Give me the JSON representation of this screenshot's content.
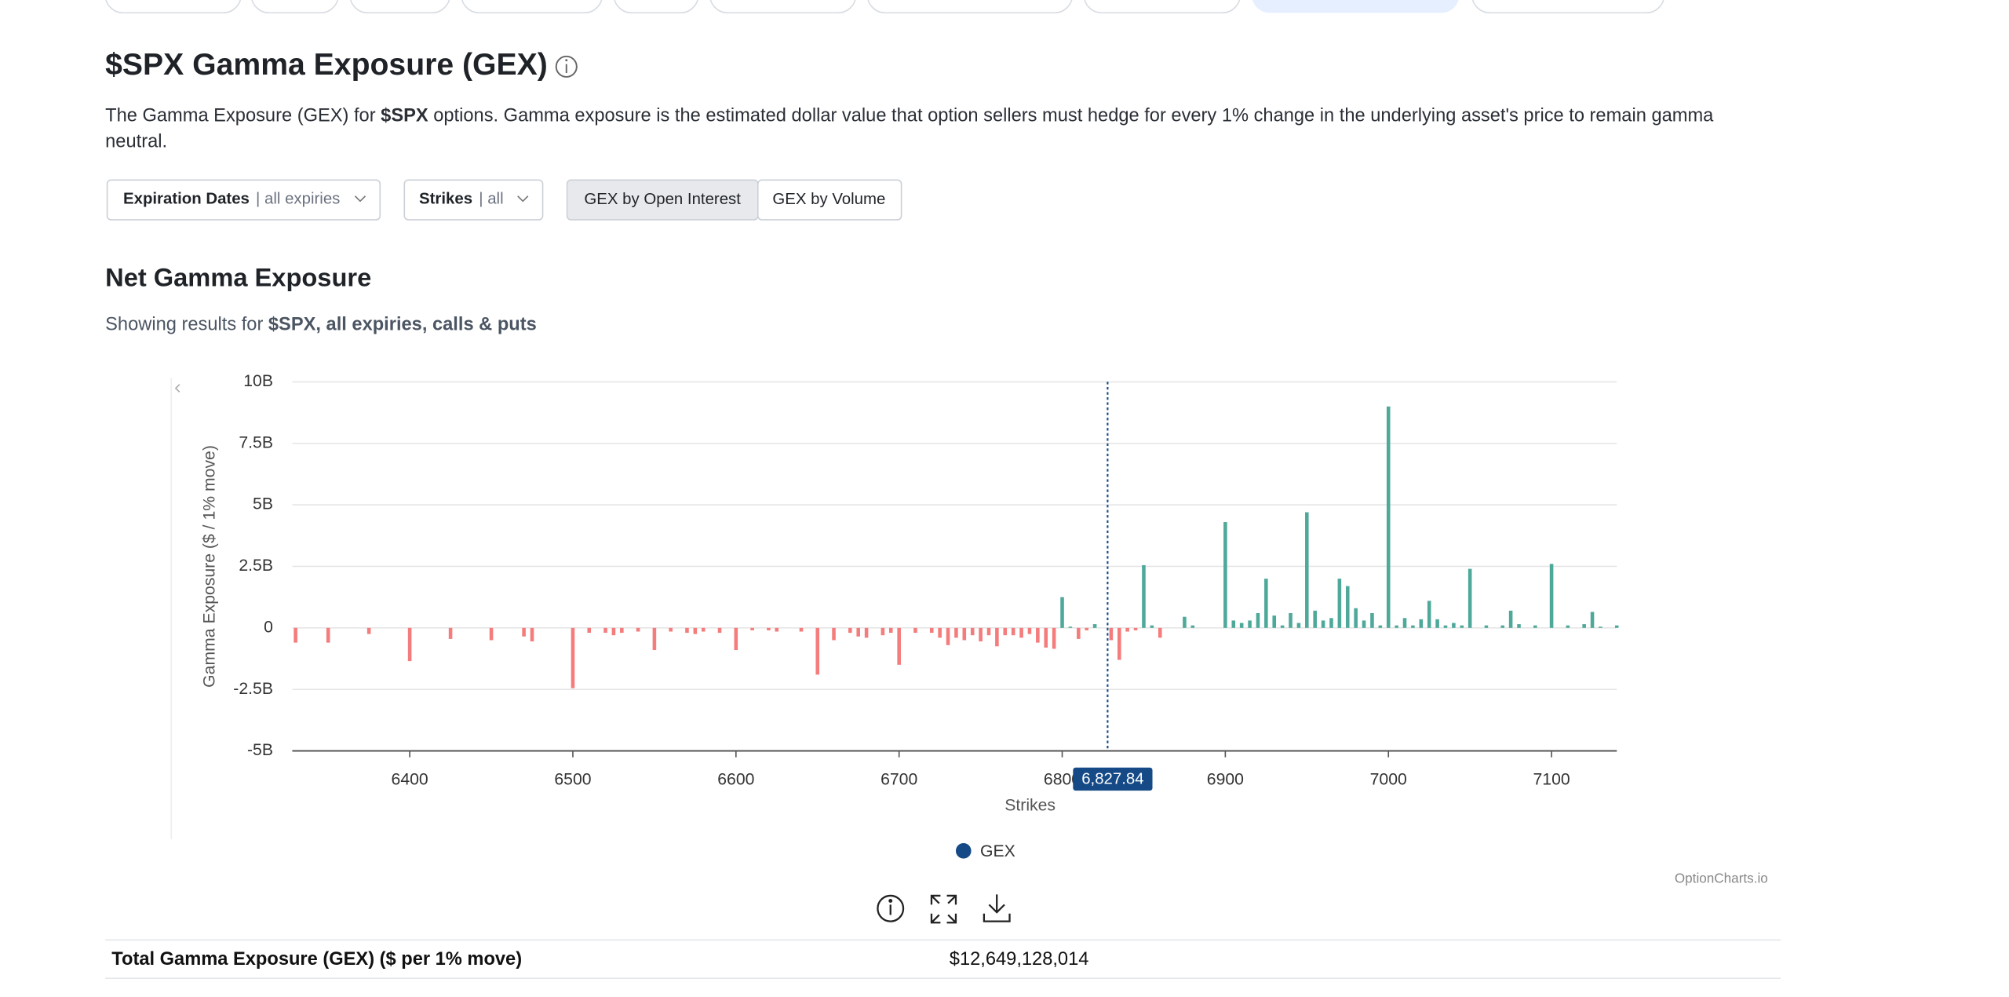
{
  "header": {
    "title": "$SPX Gamma Exposure (GEX)",
    "description": {
      "line1": [
        "The Gamma Exposure (GEX) for ",
        "$SPX",
        " options. Gamma exposure is the estimated dollar value that option sellers must hedge for every 1% change in the underlying asset's price to remain gamma"
      ],
      "line2": "neutral."
    }
  },
  "controls": {
    "expiration": {
      "label": "Expiration Dates",
      "value": "| all expiries"
    },
    "strikes": {
      "label": "Strikes",
      "value": "| all"
    },
    "toggle": [
      "GEX by Open Interest",
      "GEX by Volume"
    ]
  },
  "section": {
    "title": "Net Gamma Exposure",
    "subtitle": [
      "Showing results for ",
      "$SPX, all expiries, calls & puts"
    ]
  },
  "chart_data": {
    "type": "bar",
    "y_label": "Gamma Exposure ($ / 1% move)",
    "x_label": "Strikes",
    "x": [
      6330,
      6350,
      6375,
      6400,
      6425,
      6450,
      6470,
      6475,
      6500,
      6510,
      6520,
      6525,
      6530,
      6540,
      6550,
      6560,
      6570,
      6575,
      6580,
      6590,
      6600,
      6610,
      6620,
      6625,
      6640,
      6650,
      6660,
      6670,
      6675,
      6680,
      6690,
      6695,
      6700,
      6710,
      6720,
      6725,
      6730,
      6735,
      6740,
      6745,
      6750,
      6755,
      6760,
      6765,
      6770,
      6775,
      6780,
      6785,
      6790,
      6795,
      6800,
      6805,
      6810,
      6815,
      6820,
      6830,
      6835,
      6840,
      6845,
      6850,
      6855,
      6860,
      6875,
      6880,
      6900,
      6905,
      6910,
      6915,
      6920,
      6925,
      6930,
      6935,
      6940,
      6945,
      6950,
      6955,
      6960,
      6965,
      6970,
      6975,
      6980,
      6985,
      6990,
      6995,
      7000,
      7005,
      7010,
      7015,
      7020,
      7025,
      7030,
      7035,
      7040,
      7045,
      7050,
      7060,
      7070,
      7075,
      7080,
      7090,
      7100,
      7110,
      7120,
      7125,
      7130,
      7140
    ],
    "series": [
      {
        "name": "GEX",
        "color": "#154a86",
        "positive_color": "#4fa99a",
        "negative_color": "#f47c7c",
        "values": [
          -0.6,
          -0.6,
          -0.25,
          -1.35,
          -0.45,
          -0.5,
          -0.35,
          -0.55,
          -2.45,
          -0.2,
          -0.2,
          -0.3,
          -0.2,
          -0.15,
          -0.9,
          -0.15,
          -0.2,
          -0.25,
          -0.15,
          -0.2,
          -0.9,
          -0.1,
          -0.1,
          -0.15,
          -0.15,
          -1.9,
          -0.5,
          -0.2,
          -0.35,
          -0.4,
          -0.3,
          -0.2,
          -1.5,
          -0.2,
          -0.2,
          -0.4,
          -0.7,
          -0.4,
          -0.5,
          -0.3,
          -0.55,
          -0.3,
          -0.75,
          -0.3,
          -0.3,
          -0.4,
          -0.25,
          -0.6,
          -0.8,
          -0.85,
          1.25,
          0.05,
          -0.45,
          -0.1,
          0.15,
          -0.5,
          -1.3,
          -0.15,
          -0.1,
          2.55,
          0.1,
          -0.4,
          0.45,
          0.1,
          4.3,
          0.3,
          0.2,
          0.3,
          0.6,
          2.0,
          0.5,
          0.1,
          0.6,
          0.2,
          4.7,
          0.7,
          0.3,
          0.4,
          2.0,
          1.7,
          0.8,
          0.3,
          0.6,
          0.1,
          9.0,
          0.1,
          0.4,
          0.1,
          0.35,
          1.1,
          0.35,
          0.1,
          0.2,
          0.1,
          2.4,
          0.1,
          0.1,
          0.7,
          0.15,
          0.1,
          2.6,
          0.1,
          0.15,
          0.65,
          0.05,
          0.1
        ]
      }
    ],
    "xlim": [
      6328,
      7140
    ],
    "xticks": [
      6400,
      6500,
      6600,
      6700,
      6800,
      6900,
      7000,
      7100
    ],
    "ylim": [
      -5,
      10
    ],
    "yticks": [
      {
        "value": -5,
        "label": "-5B"
      },
      {
        "value": -2.5,
        "label": "-2.5B"
      },
      0,
      {
        "value": 2.5,
        "label": "2.5B"
      },
      {
        "value": 5,
        "label": "5B"
      },
      {
        "value": 7.5,
        "label": "7.5B"
      },
      {
        "value": 10,
        "label": "10B"
      }
    ],
    "grid": true,
    "annotation": {
      "value": 6827.84,
      "label": "6,827.84"
    },
    "legend": "bottom"
  },
  "watermark": "OptionCharts.io",
  "total": {
    "label": "Total Gamma Exposure (GEX) ($ per 1% move)",
    "value": "$12,649,128,014"
  }
}
